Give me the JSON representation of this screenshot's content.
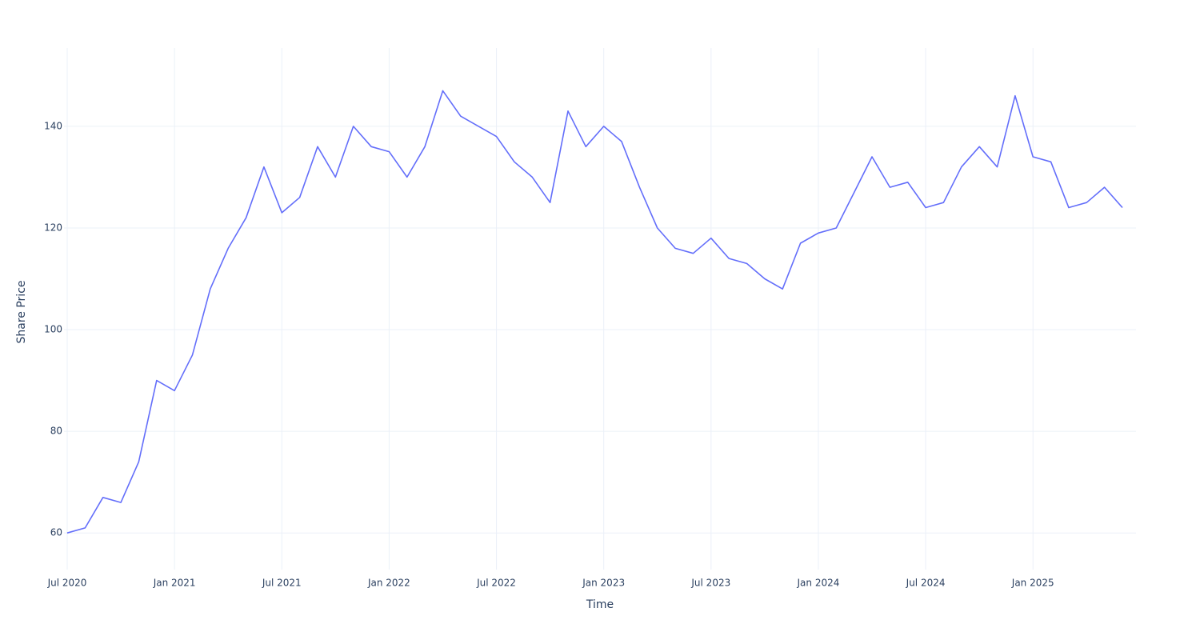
{
  "chart_data": {
    "type": "line",
    "x_label": "Time",
    "y_label": "Share Price",
    "x": [
      "2020-07",
      "2020-08",
      "2020-09",
      "2020-10",
      "2020-11",
      "2020-12",
      "2021-01",
      "2021-02",
      "2021-03",
      "2021-04",
      "2021-05",
      "2021-06",
      "2021-07",
      "2021-08",
      "2021-09",
      "2021-10",
      "2021-11",
      "2021-12",
      "2022-01",
      "2022-02",
      "2022-03",
      "2022-04",
      "2022-05",
      "2022-06",
      "2022-07",
      "2022-08",
      "2022-09",
      "2022-10",
      "2022-11",
      "2022-12",
      "2023-01",
      "2023-02",
      "2023-03",
      "2023-04",
      "2023-05",
      "2023-06",
      "2023-07",
      "2023-08",
      "2023-09",
      "2023-10",
      "2023-11",
      "2023-12",
      "2024-01",
      "2024-02",
      "2024-03",
      "2024-04",
      "2024-05",
      "2024-06",
      "2024-07",
      "2024-08",
      "2024-09",
      "2024-10",
      "2024-11",
      "2024-12",
      "2025-01",
      "2025-02",
      "2025-03",
      "2025-04",
      "2025-05",
      "2025-06"
    ],
    "series": [
      {
        "color": "#636efa",
        "values": [
          60,
          61,
          67,
          66,
          74,
          90,
          88,
          95,
          108,
          116,
          122,
          132,
          123,
          126,
          136,
          130,
          140,
          136,
          135,
          130,
          136,
          147,
          142,
          140,
          138,
          133,
          130,
          125,
          143,
          136,
          140,
          137,
          128,
          120,
          116,
          115,
          118,
          114,
          113,
          110,
          108,
          117,
          119,
          120,
          127,
          134,
          128,
          129,
          124,
          125,
          132,
          136,
          132,
          146,
          134,
          133,
          124,
          125,
          128,
          124
        ]
      }
    ],
    "xlim": [
      "2020-07",
      "2025-06"
    ],
    "xticks": [
      {
        "value": "2020-07",
        "label": "Jul 2020"
      },
      {
        "value": "2021-01",
        "label": "Jan 2021"
      },
      {
        "value": "2021-07",
        "label": "Jul 2021"
      },
      {
        "value": "2022-01",
        "label": "Jan 2022"
      },
      {
        "value": "2022-07",
        "label": "Jul 2022"
      },
      {
        "value": "2023-01",
        "label": "Jan 2023"
      },
      {
        "value": "2023-07",
        "label": "Jul 2023"
      },
      {
        "value": "2024-01",
        "label": "Jan 2024"
      },
      {
        "value": "2024-07",
        "label": "Jul 2024"
      },
      {
        "value": "2025-01",
        "label": "Jan 2025"
      }
    ],
    "ylim": [
      52.8,
      155.4
    ],
    "yticks": [
      60,
      80,
      100,
      120,
      140
    ],
    "grid": true
  }
}
